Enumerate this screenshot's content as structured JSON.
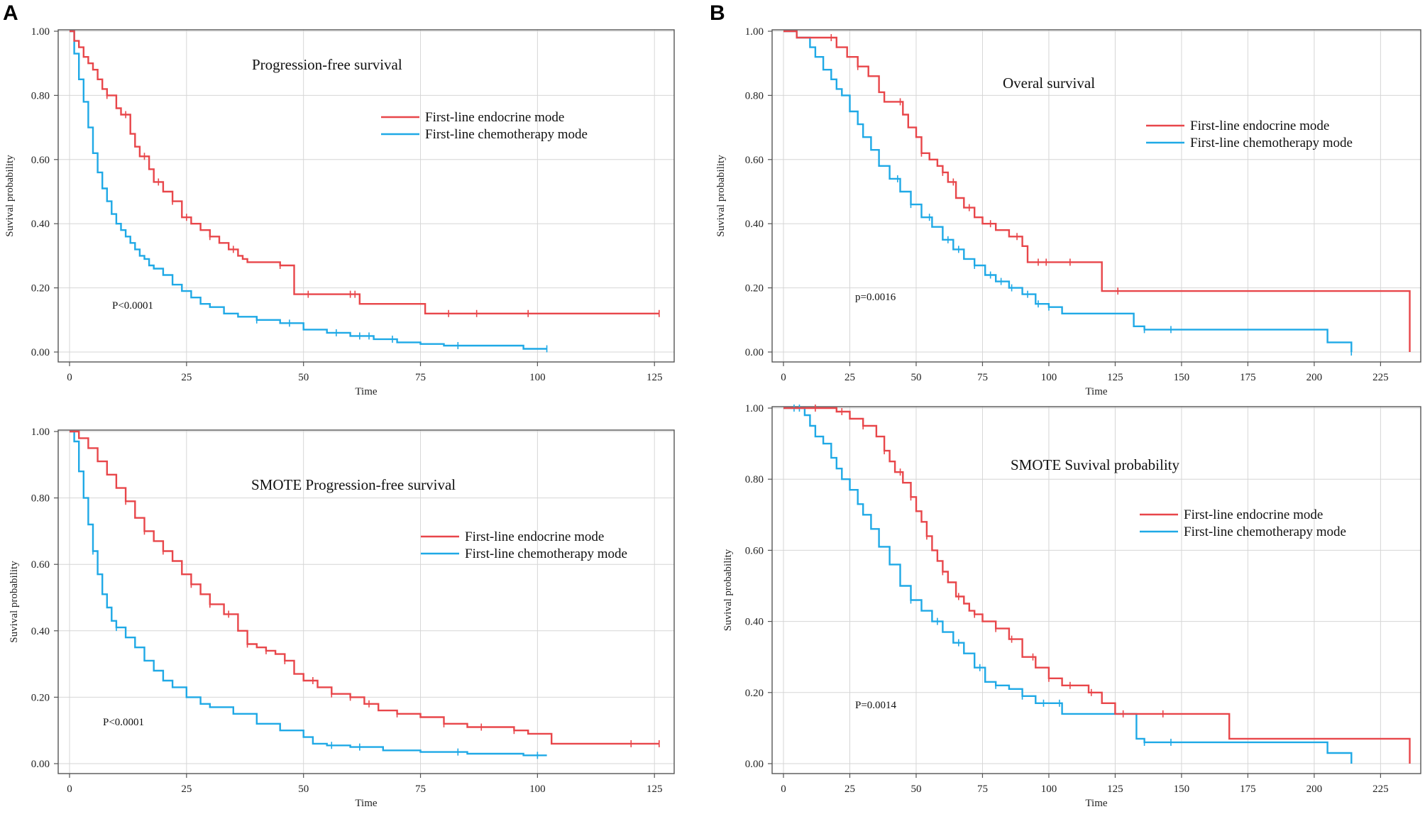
{
  "panel_labels": [
    "A",
    "B"
  ],
  "colors": {
    "endocrine": "#E8464A",
    "chemotherapy": "#1FA9E6"
  },
  "chart_data": [
    {
      "type": "line",
      "subtype": "kaplan-meier",
      "panel": "A",
      "title": "Progression-free survival",
      "xlabel": "Time",
      "ylabel": "Suvival probability",
      "xlim": [
        0,
        128
      ],
      "ylim": [
        0,
        1
      ],
      "xticks": [
        0,
        25,
        50,
        75,
        100,
        125
      ],
      "yticks": [
        "0.00",
        "0.20",
        "0.40",
        "0.60",
        "0.80",
        "1.00"
      ],
      "legend_position": "upper-right",
      "annotation": "P<0.0001",
      "series": [
        {
          "name": "First-line endocrine mode",
          "color": "#E8464A",
          "x": [
            0,
            1,
            2,
            3,
            4,
            5,
            6,
            7,
            8,
            10,
            11,
            13,
            14,
            15,
            17,
            18,
            20,
            22,
            24,
            26,
            28,
            30,
            32,
            34,
            36,
            37,
            38,
            42,
            45,
            46,
            48,
            50,
            55,
            60,
            62,
            70,
            76,
            90,
            105,
            126
          ],
          "y": [
            1,
            0.97,
            0.95,
            0.92,
            0.9,
            0.88,
            0.85,
            0.82,
            0.8,
            0.76,
            0.74,
            0.68,
            0.64,
            0.61,
            0.57,
            0.53,
            0.5,
            0.47,
            0.42,
            0.4,
            0.38,
            0.36,
            0.34,
            0.32,
            0.3,
            0.29,
            0.28,
            0.28,
            0.27,
            0.27,
            0.18,
            0.18,
            0.18,
            0.18,
            0.15,
            0.15,
            0.12,
            0.12,
            0.12,
            0.12
          ],
          "censor_x": [
            8,
            12,
            16,
            19,
            22,
            25,
            30,
            35,
            45,
            51,
            60,
            61,
            81,
            87,
            98,
            126
          ]
        },
        {
          "name": "First-line chemotherapy mode",
          "color": "#1FA9E6",
          "x": [
            0,
            1,
            2,
            3,
            4,
            5,
            6,
            7,
            8,
            9,
            10,
            11,
            12,
            13,
            14,
            15,
            16,
            17,
            18,
            20,
            22,
            24,
            26,
            28,
            30,
            33,
            36,
            40,
            45,
            50,
            55,
            60,
            65,
            70,
            75,
            80,
            90,
            97,
            102
          ],
          "y": [
            1,
            0.93,
            0.85,
            0.78,
            0.7,
            0.62,
            0.56,
            0.51,
            0.47,
            0.43,
            0.4,
            0.38,
            0.36,
            0.34,
            0.32,
            0.3,
            0.29,
            0.27,
            0.26,
            0.24,
            0.21,
            0.19,
            0.17,
            0.15,
            0.14,
            0.12,
            0.11,
            0.1,
            0.09,
            0.07,
            0.06,
            0.05,
            0.04,
            0.03,
            0.025,
            0.02,
            0.02,
            0.01,
            0.01
          ],
          "censor_x": [
            40,
            47,
            57,
            62,
            64,
            69,
            83,
            102
          ]
        }
      ]
    },
    {
      "type": "line",
      "subtype": "kaplan-meier",
      "panel": "B",
      "title": "Overal survival",
      "xlabel": "Time",
      "ylabel": "Suvival probability",
      "xlim": [
        0,
        238
      ],
      "ylim": [
        0,
        1
      ],
      "xticks": [
        0,
        25,
        50,
        75,
        100,
        125,
        150,
        175,
        200,
        225
      ],
      "yticks": [
        "0.00",
        "0.20",
        "0.40",
        "0.60",
        "0.80",
        "1.00"
      ],
      "legend_position": "upper-right",
      "annotation": "p=0.0016",
      "series": [
        {
          "name": "First-line endocrine mode",
          "color": "#E8464A",
          "x": [
            0,
            5,
            10,
            18,
            20,
            24,
            28,
            32,
            36,
            38,
            40,
            45,
            47,
            50,
            52,
            55,
            58,
            60,
            62,
            65,
            68,
            72,
            75,
            80,
            85,
            90,
            92,
            100,
            110,
            120,
            125,
            150,
            200,
            235,
            236
          ],
          "y": [
            1,
            0.98,
            0.98,
            0.98,
            0.95,
            0.92,
            0.89,
            0.86,
            0.81,
            0.78,
            0.78,
            0.74,
            0.7,
            0.67,
            0.62,
            0.6,
            0.58,
            0.56,
            0.53,
            0.48,
            0.45,
            0.42,
            0.4,
            0.38,
            0.36,
            0.33,
            0.28,
            0.28,
            0.28,
            0.19,
            0.19,
            0.19,
            0.19,
            0.19,
            0
          ],
          "censor_x": [
            18,
            28,
            44,
            52,
            60,
            64,
            70,
            78,
            88,
            96,
            99,
            108,
            126
          ]
        },
        {
          "name": "First-line chemotherapy mode",
          "color": "#1FA9E6",
          "x": [
            0,
            5,
            10,
            12,
            15,
            18,
            20,
            22,
            25,
            28,
            30,
            33,
            36,
            40,
            44,
            48,
            52,
            56,
            60,
            64,
            68,
            72,
            76,
            80,
            85,
            90,
            95,
            100,
            105,
            110,
            120,
            130,
            132,
            136,
            150,
            180,
            205,
            214
          ],
          "y": [
            1,
            0.98,
            0.95,
            0.92,
            0.88,
            0.85,
            0.82,
            0.8,
            0.75,
            0.71,
            0.67,
            0.63,
            0.58,
            0.54,
            0.5,
            0.46,
            0.42,
            0.39,
            0.35,
            0.32,
            0.29,
            0.27,
            0.24,
            0.22,
            0.2,
            0.18,
            0.15,
            0.14,
            0.12,
            0.12,
            0.12,
            0.12,
            0.08,
            0.07,
            0.07,
            0.07,
            0.03,
            0
          ],
          "censor_x": [
            43,
            48,
            55,
            62,
            66,
            72,
            78,
            82,
            86,
            92,
            96,
            100,
            136,
            146,
            214
          ]
        }
      ]
    },
    {
      "type": "line",
      "subtype": "kaplan-meier",
      "panel": "A",
      "title": "SMOTE Progression-free survival",
      "xlabel": "Time",
      "ylabel": "Suvival probability",
      "xlim": [
        0,
        128
      ],
      "ylim": [
        0,
        1
      ],
      "xticks": [
        0,
        25,
        50,
        75,
        100,
        125
      ],
      "yticks": [
        "0.00",
        "0.20",
        "0.40",
        "0.60",
        "0.80",
        "1.00"
      ],
      "legend_position": "upper-right",
      "annotation": "P<0.0001",
      "series": [
        {
          "name": "First-line endocrine mode",
          "color": "#E8464A",
          "x": [
            0,
            2,
            4,
            6,
            8,
            10,
            12,
            14,
            16,
            18,
            20,
            22,
            24,
            26,
            28,
            30,
            33,
            36,
            38,
            40,
            42,
            44,
            46,
            48,
            50,
            53,
            56,
            60,
            63,
            66,
            70,
            75,
            80,
            85,
            90,
            95,
            98,
            103,
            110,
            126
          ],
          "y": [
            1,
            0.98,
            0.95,
            0.91,
            0.87,
            0.83,
            0.79,
            0.74,
            0.7,
            0.67,
            0.64,
            0.61,
            0.57,
            0.54,
            0.51,
            0.48,
            0.45,
            0.4,
            0.36,
            0.35,
            0.34,
            0.33,
            0.31,
            0.27,
            0.25,
            0.23,
            0.21,
            0.2,
            0.18,
            0.16,
            0.15,
            0.14,
            0.12,
            0.11,
            0.11,
            0.1,
            0.09,
            0.06,
            0.06,
            0.06
          ],
          "censor_x": [
            12,
            16,
            20,
            26,
            30,
            34,
            38,
            42,
            46,
            52,
            56,
            60,
            64,
            70,
            80,
            88,
            95,
            120,
            126
          ]
        },
        {
          "name": "First-line chemotherapy mode",
          "color": "#1FA9E6",
          "x": [
            0,
            1,
            2,
            3,
            4,
            5,
            6,
            7,
            8,
            9,
            10,
            12,
            14,
            16,
            18,
            20,
            22,
            25,
            28,
            30,
            35,
            40,
            45,
            50,
            52,
            55,
            60,
            67,
            75,
            85,
            95,
            97,
            102
          ],
          "y": [
            1,
            0.97,
            0.88,
            0.8,
            0.72,
            0.64,
            0.57,
            0.51,
            0.47,
            0.43,
            0.41,
            0.38,
            0.35,
            0.31,
            0.28,
            0.25,
            0.23,
            0.2,
            0.18,
            0.17,
            0.15,
            0.12,
            0.1,
            0.08,
            0.06,
            0.055,
            0.05,
            0.04,
            0.035,
            0.03,
            0.03,
            0.025,
            0.025
          ],
          "censor_x": [
            5,
            10,
            56,
            62,
            83,
            100
          ]
        }
      ]
    },
    {
      "type": "line",
      "subtype": "kaplan-meier",
      "panel": "B",
      "title": "SMOTE Suvival probability",
      "xlabel": "Time",
      "ylabel": "Suvival probability",
      "xlim": [
        0,
        238
      ],
      "ylim": [
        0,
        1
      ],
      "xticks": [
        0,
        25,
        50,
        75,
        100,
        125,
        150,
        175,
        200,
        225
      ],
      "yticks": [
        "0.00",
        "0.20",
        "0.40",
        "0.60",
        "0.80",
        "1.00"
      ],
      "legend_position": "upper-right",
      "annotation": "P=0.0014",
      "series": [
        {
          "name": "First-line endocrine mode",
          "color": "#E8464A",
          "x": [
            0,
            15,
            20,
            25,
            30,
            35,
            38,
            40,
            42,
            45,
            48,
            50,
            52,
            54,
            56,
            58,
            60,
            62,
            65,
            68,
            70,
            72,
            75,
            80,
            85,
            90,
            95,
            100,
            105,
            110,
            115,
            120,
            125,
            130,
            140,
            150,
            168,
            190,
            200,
            220,
            235,
            236
          ],
          "y": [
            1,
            1,
            0.99,
            0.97,
            0.95,
            0.92,
            0.88,
            0.85,
            0.82,
            0.79,
            0.75,
            0.71,
            0.68,
            0.64,
            0.6,
            0.57,
            0.54,
            0.51,
            0.47,
            0.45,
            0.43,
            0.42,
            0.4,
            0.38,
            0.35,
            0.3,
            0.27,
            0.24,
            0.22,
            0.22,
            0.2,
            0.17,
            0.14,
            0.14,
            0.14,
            0.14,
            0.07,
            0.07,
            0.07,
            0.07,
            0.07,
            0
          ],
          "censor_x": [
            12,
            22,
            30,
            38,
            44,
            48,
            54,
            60,
            66,
            72,
            80,
            86,
            94,
            100,
            108,
            116,
            128,
            143
          ]
        },
        {
          "name": "First-line chemotherapy mode",
          "color": "#1FA9E6",
          "x": [
            0,
            5,
            8,
            10,
            12,
            15,
            18,
            20,
            22,
            25,
            28,
            30,
            33,
            36,
            40,
            44,
            48,
            52,
            56,
            60,
            64,
            68,
            72,
            76,
            80,
            85,
            90,
            95,
            100,
            105,
            110,
            120,
            130,
            133,
            136,
            150,
            180,
            205,
            214
          ],
          "y": [
            1,
            1,
            0.98,
            0.95,
            0.92,
            0.9,
            0.86,
            0.83,
            0.8,
            0.77,
            0.73,
            0.7,
            0.66,
            0.61,
            0.56,
            0.5,
            0.46,
            0.43,
            0.4,
            0.37,
            0.34,
            0.31,
            0.27,
            0.23,
            0.22,
            0.21,
            0.19,
            0.17,
            0.17,
            0.14,
            0.14,
            0.14,
            0.14,
            0.07,
            0.06,
            0.06,
            0.06,
            0.03,
            0
          ],
          "censor_x": [
            4,
            6,
            48,
            58,
            66,
            74,
            80,
            90,
            98,
            104,
            136,
            146
          ]
        }
      ]
    }
  ]
}
